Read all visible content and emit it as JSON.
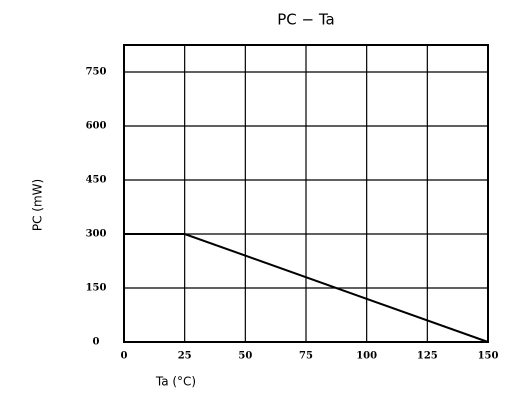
{
  "chart_data": {
    "type": "line",
    "title": "PC − Ta",
    "x_label": "Ta (°C)",
    "y_label": "PC (mW)",
    "x": [
      0,
      25,
      150
    ],
    "series": [
      {
        "name": "PC",
        "color": "#000000",
        "values": [
          300,
          300,
          0
        ]
      }
    ],
    "xlim": [
      0,
      150
    ],
    "xticks": [
      0,
      25,
      50,
      75,
      100,
      125,
      150
    ],
    "ylim": [
      0,
      825
    ],
    "yticks": [
      0,
      150,
      300,
      450,
      600,
      750
    ],
    "grid": true
  }
}
